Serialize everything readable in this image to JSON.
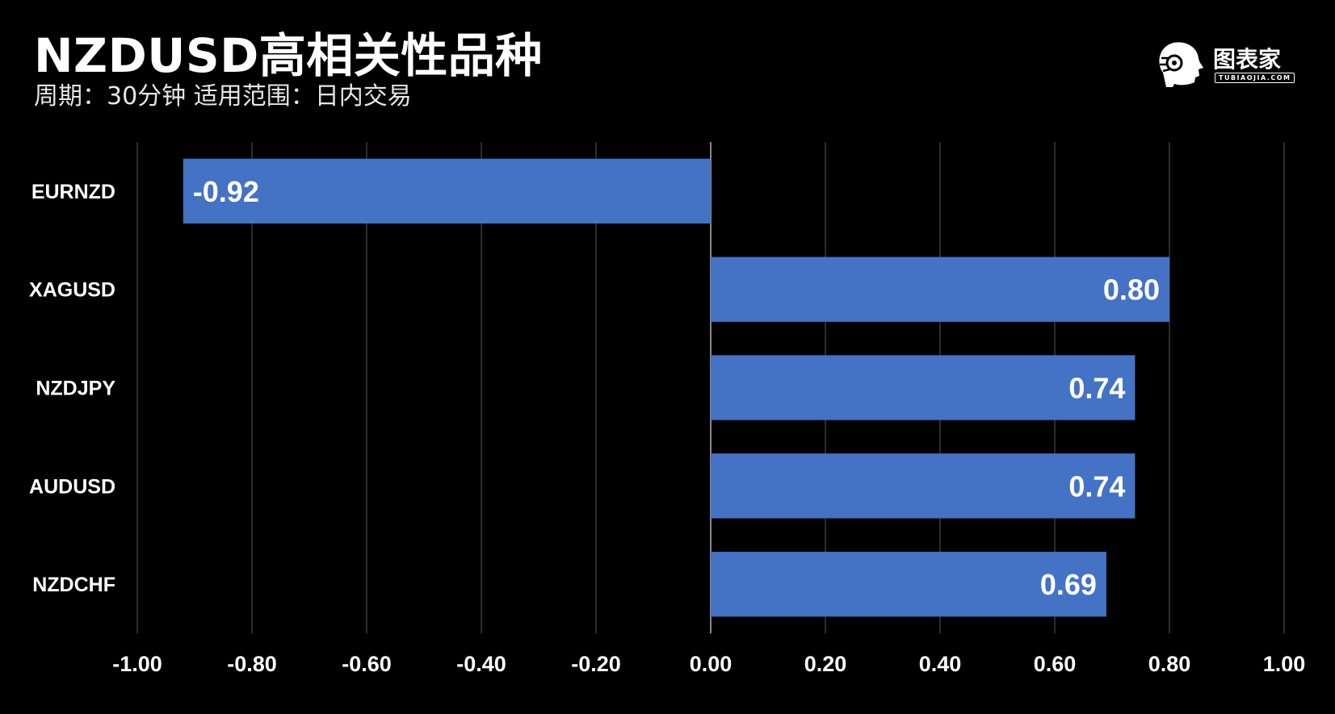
{
  "title": "NZDUSD高相关性品种",
  "subtitle": "周期：30分钟  适用范围：日内交易",
  "logo": {
    "text": "图表家",
    "sub": "TUBIAOJIA.COM"
  },
  "colors": {
    "background": "#000000",
    "bar": "#4472C4",
    "grid": "#3a3a3a",
    "zero_line": "#888888"
  },
  "chart_data": {
    "type": "bar",
    "orientation": "horizontal",
    "categories": [
      "EURNZD",
      "XAGUSD",
      "NZDJPY",
      "AUDUSD",
      "NZDCHF"
    ],
    "values": [
      -0.92,
      0.8,
      0.74,
      0.74,
      0.69
    ],
    "value_labels": [
      "-0.92",
      "0.80",
      "0.74",
      "0.74",
      "0.69"
    ],
    "xlim": [
      -1.0,
      1.0
    ],
    "xticks": [
      -1.0,
      -0.8,
      -0.6,
      -0.4,
      -0.2,
      0.0,
      0.2,
      0.4,
      0.6,
      0.8,
      1.0
    ],
    "xtick_labels": [
      "-1.00",
      "-0.80",
      "-0.60",
      "-0.40",
      "-0.20",
      "0.00",
      "0.20",
      "0.40",
      "0.60",
      "0.80",
      "1.00"
    ],
    "grid": true,
    "legend": "none"
  }
}
